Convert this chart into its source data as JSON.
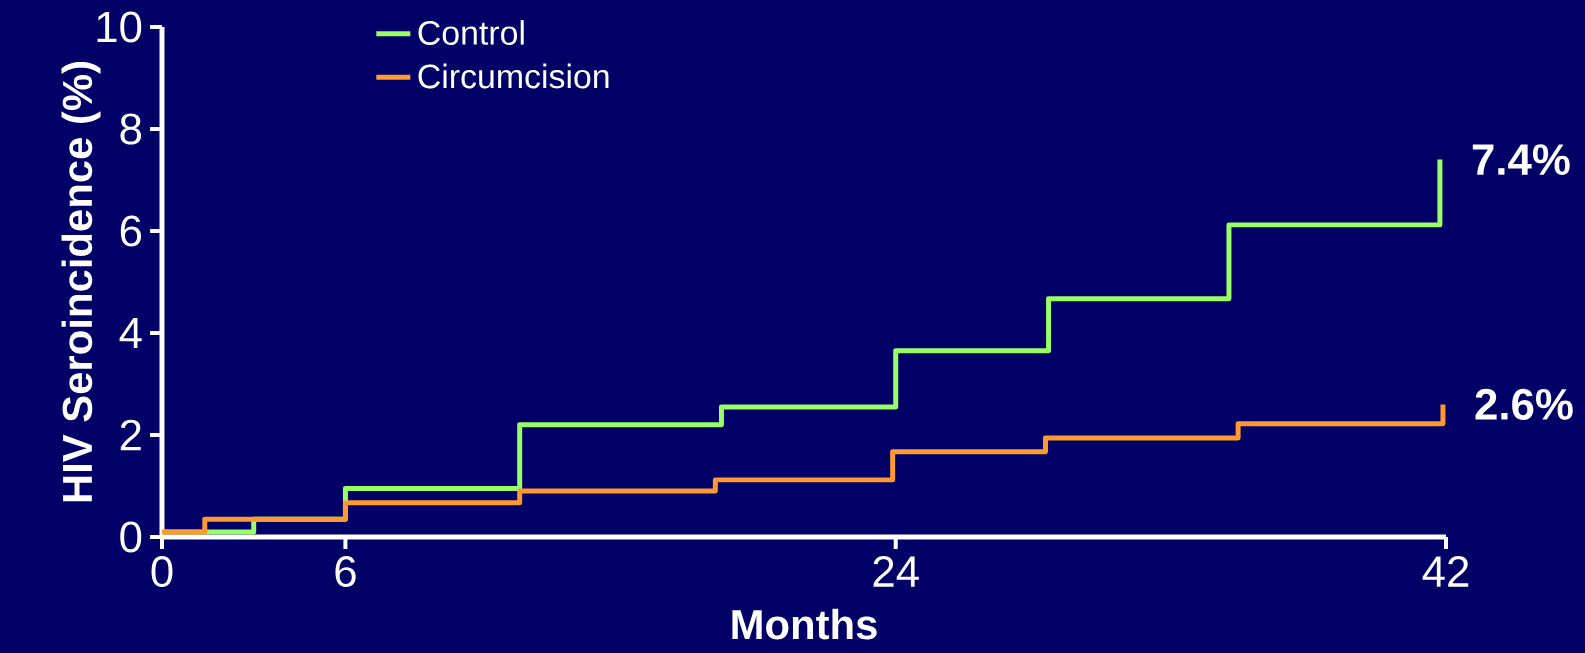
{
  "chart_data": {
    "type": "step",
    "xlabel": "Months",
    "ylabel": "HIV Seroincidence (%)",
    "xlim": [
      0,
      42
    ],
    "ylim": [
      0,
      10
    ],
    "xticks": [
      0,
      6,
      24,
      42
    ],
    "yticks": [
      0,
      2,
      4,
      6,
      8,
      10
    ],
    "grid": false,
    "legend": "top left",
    "marker": "none",
    "line_style": "solid",
    "series": [
      {
        "name": "Control",
        "color": "#99ff66",
        "x": [
          0,
          3,
          6,
          11.7,
          18.3,
          24,
          29,
          34.9,
          41.8
        ],
        "values": [
          0.1,
          0.35,
          0.95,
          2.2,
          2.55,
          3.65,
          4.67,
          6.12,
          7.4
        ]
      },
      {
        "name": "Circumcision",
        "color": "#ff9933",
        "x": [
          0,
          1.4,
          6,
          11.7,
          18.1,
          23.9,
          28.9,
          35.2,
          41.9
        ],
        "values": [
          0.1,
          0.35,
          0.67,
          0.9,
          1.12,
          1.67,
          1.94,
          2.22,
          2.6
        ]
      }
    ],
    "annotations": [
      {
        "text": "7.4%",
        "x": 41.8,
        "y": 7.4
      },
      {
        "text": "2.6%",
        "x": 41.9,
        "y": 2.6
      }
    ]
  }
}
